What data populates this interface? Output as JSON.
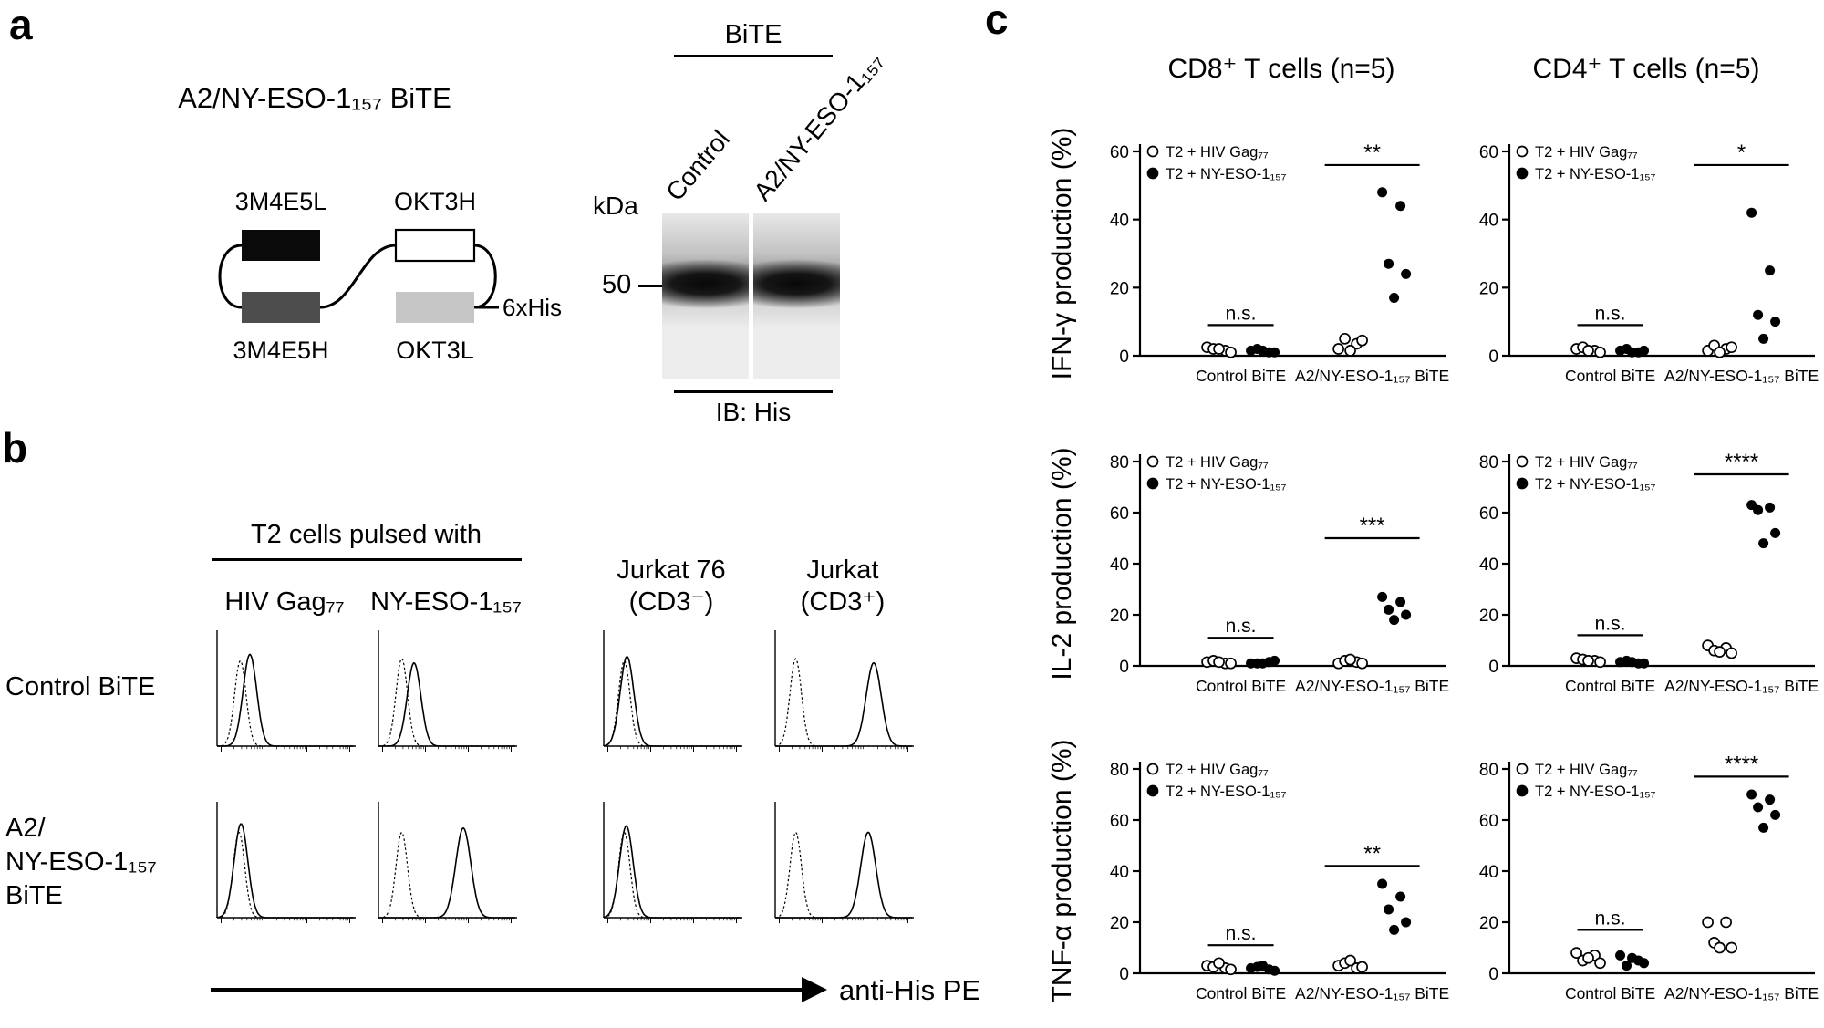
{
  "panel_a": {
    "label": "a",
    "title": "A2/NY-ESO-1₁₅₇ BiTE",
    "schematic": {
      "domains": [
        {
          "name": "3M4E5L",
          "color": "#0a0a0a"
        },
        {
          "name": "OKT3H",
          "color": "#ffffff"
        },
        {
          "name": "3M4E5H",
          "color": "#4d4d4d"
        },
        {
          "name": "OKT3L",
          "color": "#c6c6c6"
        }
      ],
      "tag": "6xHis"
    },
    "blot": {
      "group_header": "BiTE",
      "lane_labels": [
        "Control",
        "A2/NY-ESO-1₁₅₇"
      ],
      "unit": "kDa",
      "marker": "50",
      "caption": "IB: His"
    }
  },
  "panel_b": {
    "label": "b",
    "group_header": "T2 cells pulsed with",
    "col_labels": [
      {
        "line1": "HIV Gag₇₇",
        "line2": ""
      },
      {
        "line1": "NY-ESO-1₁₅₇",
        "line2": ""
      },
      {
        "line1": "Jurkat 76",
        "line2": "(CD3⁻)"
      },
      {
        "line1": "Jurkat",
        "line2": "(CD3⁺)"
      }
    ],
    "row_labels": [
      {
        "line1": "Control BiTE",
        "line2": "",
        "line3": ""
      },
      {
        "line1": "A2/",
        "line2": "NY-ESO-1₁₅₇",
        "line3": "BiTE"
      }
    ],
    "x_axis_label": "anti-His PE"
  },
  "panel_c": {
    "label": "c",
    "column_headers": [
      "CD8⁺ T cells (n=5)",
      "CD4⁺ T cells (n=5)"
    ],
    "row_ylabels": [
      "IFN-γ production (%)",
      "IL-2 production (%)",
      "TNF-α production (%)"
    ],
    "legend": [
      {
        "marker": "open",
        "label": "T2 + HIV Gag₇₇"
      },
      {
        "marker": "filled",
        "label": "T2 + NY-ESO-1₁₅₇"
      }
    ]
  },
  "chart_data": [
    {
      "type": "line",
      "id": "flow-histograms",
      "title": "anti-His PE staining histograms",
      "xlabel": "anti-His PE",
      "rows": [
        "Control BiTE",
        "A2/NY-ESO-1₁₅₇ BiTE"
      ],
      "columns": [
        "T2 + HIV Gag₇₇",
        "T2 + NY-ESO-1₁₅₇",
        "Jurkat 76 (CD3⁻)",
        "Jurkat (CD3⁺)"
      ],
      "curve_meaning": "dotted = control stain, solid = BiTE stain; peaks are fractions of x-axis range",
      "plots": [
        {
          "row": 0,
          "col": 0,
          "dotted_peak": 0.17,
          "solid_peak": 0.24,
          "dotted_height": 0.8,
          "solid_height": 0.86
        },
        {
          "row": 0,
          "col": 1,
          "dotted_peak": 0.17,
          "solid_peak": 0.26,
          "dotted_height": 0.82,
          "solid_height": 0.78
        },
        {
          "row": 0,
          "col": 2,
          "dotted_peak": 0.15,
          "solid_peak": 0.17,
          "dotted_height": 0.8,
          "solid_height": 0.84
        },
        {
          "row": 0,
          "col": 3,
          "dotted_peak": 0.15,
          "solid_peak": 0.72,
          "dotted_height": 0.82,
          "solid_height": 0.78,
          "solid_sigma": 0.055
        },
        {
          "row": 1,
          "col": 0,
          "dotted_peak": 0.16,
          "solid_peak": 0.175,
          "dotted_height": 0.8,
          "solid_height": 0.88
        },
        {
          "row": 1,
          "col": 1,
          "dotted_peak": 0.17,
          "solid_peak": 0.62,
          "dotted_height": 0.8,
          "solid_height": 0.84,
          "solid_sigma": 0.055
        },
        {
          "row": 1,
          "col": 2,
          "dotted_peak": 0.15,
          "solid_peak": 0.165,
          "dotted_height": 0.8,
          "solid_height": 0.86
        },
        {
          "row": 1,
          "col": 3,
          "dotted_peak": 0.15,
          "solid_peak": 0.68,
          "dotted_height": 0.8,
          "solid_height": 0.8,
          "solid_sigma": 0.055
        }
      ]
    },
    {
      "type": "scatter",
      "id": "cd8-ifng",
      "title": "CD8⁺ T cells (n=5)",
      "ylabel": "IFN-γ production (%)",
      "ylim": [
        0,
        60
      ],
      "yticks": [
        0,
        20,
        40,
        60
      ],
      "series": {
        "open": "T2 + HIV Gag₇₇",
        "filled": "T2 + NY-ESO-1₁₅₇"
      },
      "groups": [
        {
          "category": "Control BiTE",
          "sig": "n.s.",
          "sig_y": 9,
          "open": [
            2.5,
            1.5,
            2,
            1,
            2
          ],
          "filled": [
            1.5,
            1,
            2,
            1,
            1.5
          ]
        },
        {
          "category": "A2/NY-ESO-1₁₅₇ BiTE",
          "sig": "**",
          "sig_y": 56,
          "open": [
            2,
            3.5,
            5,
            4.5,
            1.5
          ],
          "filled": [
            48,
            44,
            27,
            24,
            17
          ]
        }
      ]
    },
    {
      "type": "scatter",
      "id": "cd4-ifng",
      "title": "CD4⁺ T cells (n=5)",
      "ylabel": "IFN-γ production (%)",
      "ylim": [
        0,
        60
      ],
      "yticks": [
        0,
        20,
        40,
        60
      ],
      "series": {
        "open": "T2 + HIV Gag₇₇",
        "filled": "T2 + NY-ESO-1₁₅₇"
      },
      "groups": [
        {
          "category": "Control BiTE",
          "sig": "n.s.",
          "sig_y": 9,
          "open": [
            2,
            1.5,
            2.5,
            1,
            1.5
          ],
          "filled": [
            1.5,
            1,
            2,
            1.5,
            1
          ]
        },
        {
          "category": "A2/NY-ESO-1₁₅₇ BiTE",
          "sig": "*",
          "sig_y": 56,
          "open": [
            1.5,
            2,
            3,
            2.5,
            1
          ],
          "filled": [
            42,
            25,
            12,
            10,
            5
          ]
        }
      ]
    },
    {
      "type": "scatter",
      "id": "cd8-il2",
      "title": "CD8⁺ T cells (n=5)",
      "ylabel": "IL-2 production (%)",
      "ylim": [
        0,
        80
      ],
      "yticks": [
        0,
        20,
        40,
        60,
        80
      ],
      "series": {
        "open": "T2 + HIV Gag₇₇",
        "filled": "T2 + NY-ESO-1₁₅₇"
      },
      "groups": [
        {
          "category": "Control BiTE",
          "sig": "n.s.",
          "sig_y": 11,
          "open": [
            1.5,
            1,
            2,
            1,
            1.5
          ],
          "filled": [
            1,
            1.5,
            1,
            2,
            1
          ]
        },
        {
          "category": "A2/NY-ESO-1₁₅₇ BiTE",
          "sig": "***",
          "sig_y": 50,
          "open": [
            1,
            1.5,
            2,
            1,
            2.5
          ],
          "filled": [
            27,
            25,
            22,
            20,
            18
          ]
        }
      ]
    },
    {
      "type": "scatter",
      "id": "cd4-il2",
      "title": "CD4⁺ T cells (n=5)",
      "ylabel": "IL-2 production (%)",
      "ylim": [
        0,
        80
      ],
      "yticks": [
        0,
        20,
        40,
        60,
        80
      ],
      "series": {
        "open": "T2 + HIV Gag₇₇",
        "filled": "T2 + NY-ESO-1₁₅₇"
      },
      "groups": [
        {
          "category": "Control BiTE",
          "sig": "n.s.",
          "sig_y": 12,
          "open": [
            3,
            2,
            2.5,
            1.5,
            2
          ],
          "filled": [
            1.5,
            1,
            2,
            1,
            1.5
          ]
        },
        {
          "category": "A2/NY-ESO-1₁₅₇ BiTE",
          "sig": "****",
          "sig_y": 75,
          "open": [
            8,
            7,
            6,
            5,
            5.5
          ],
          "filled": [
            63,
            62,
            61,
            52,
            48
          ]
        }
      ]
    },
    {
      "type": "scatter",
      "id": "cd8-tnfa",
      "title": "CD8⁺ T cells (n=5)",
      "ylabel": "TNF-α production (%)",
      "ylim": [
        0,
        80
      ],
      "yticks": [
        0,
        20,
        40,
        60,
        80
      ],
      "series": {
        "open": "T2 + HIV Gag₇₇",
        "filled": "T2 + NY-ESO-1₁₅₇"
      },
      "groups": [
        {
          "category": "Control BiTE",
          "sig": "n.s.",
          "sig_y": 11,
          "open": [
            3,
            2,
            2.5,
            1.5,
            4
          ],
          "filled": [
            2,
            1.5,
            2.5,
            1,
            3
          ]
        },
        {
          "category": "A2/NY-ESO-1₁₅₇ BiTE",
          "sig": "**",
          "sig_y": 42,
          "open": [
            3,
            2,
            4,
            2.5,
            5
          ],
          "filled": [
            35,
            30,
            25,
            20,
            17
          ]
        }
      ]
    },
    {
      "type": "scatter",
      "id": "cd4-tnfa",
      "title": "CD4⁺ T cells (n=5)",
      "ylabel": "TNF-α production (%)",
      "ylim": [
        0,
        80
      ],
      "yticks": [
        0,
        20,
        40,
        60,
        80
      ],
      "series": {
        "open": "T2 + HIV Gag₇₇",
        "filled": "T2 + NY-ESO-1₁₅₇"
      },
      "groups": [
        {
          "category": "Control BiTE",
          "sig": "n.s.",
          "sig_y": 17,
          "open": [
            8,
            7,
            5,
            4,
            6
          ],
          "filled": [
            7,
            5,
            3,
            4,
            6
          ]
        },
        {
          "category": "A2/NY-ESO-1₁₅₇ BiTE",
          "sig": "****",
          "sig_y": 77,
          "open": [
            20,
            20,
            12,
            10,
            10
          ],
          "filled": [
            70,
            68,
            65,
            62,
            57
          ]
        }
      ]
    }
  ]
}
